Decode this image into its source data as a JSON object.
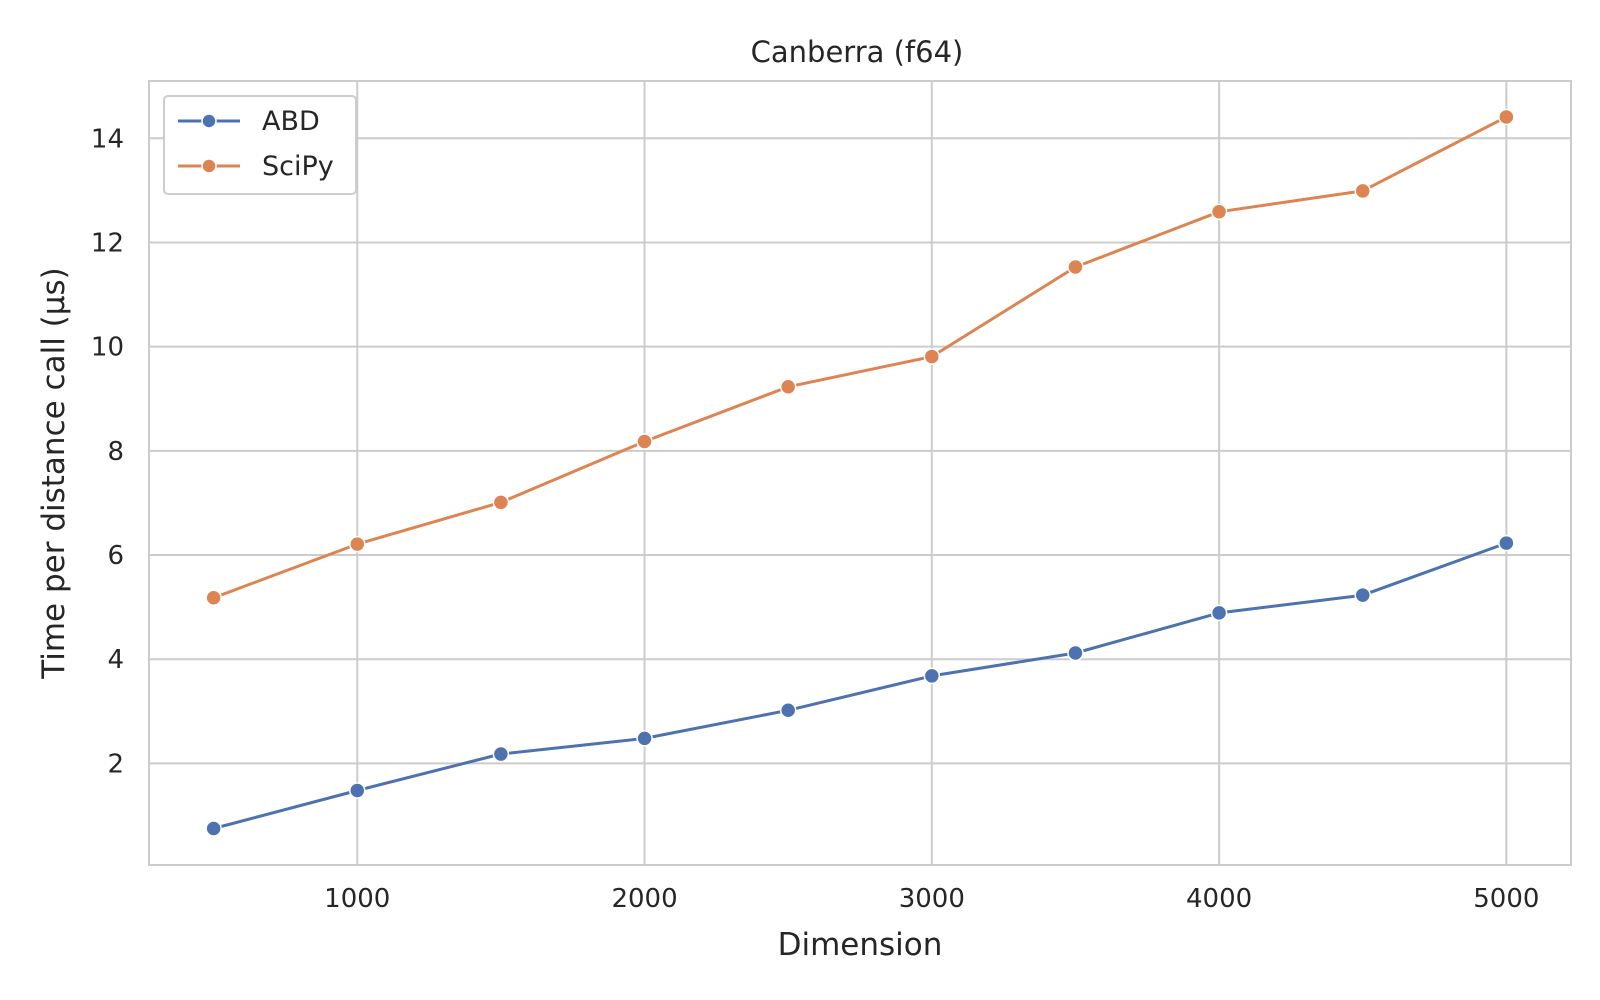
{
  "chart_data": {
    "type": "line",
    "title": "Canberra (f64)",
    "xlabel": "Dimension",
    "ylabel": "Time per distance call (µs)",
    "xlim": [
      275,
      5225
    ],
    "ylim": [
      0.05,
      15.1
    ],
    "xticks": [
      1000,
      2000,
      3000,
      4000,
      5000
    ],
    "yticks": [
      2,
      4,
      6,
      8,
      10,
      12,
      14
    ],
    "grid": true,
    "legend_position": "top-left",
    "x": [
      500,
      1000,
      1500,
      2000,
      2500,
      3000,
      3500,
      4000,
      4500,
      5000
    ],
    "series": [
      {
        "name": "ABD",
        "color": "#4c72b0",
        "values": [
          0.75,
          1.48,
          2.18,
          2.48,
          3.02,
          3.68,
          4.12,
          4.89,
          5.23,
          6.23
        ]
      },
      {
        "name": "SciPy",
        "color": "#dd8452",
        "values": [
          5.18,
          6.21,
          7.01,
          8.18,
          9.23,
          9.81,
          11.53,
          12.59,
          12.99,
          14.41
        ]
      }
    ]
  }
}
